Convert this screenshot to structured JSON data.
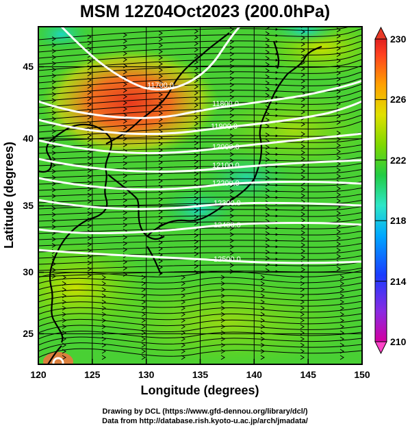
{
  "title": "MSM 12Z04Oct2023 (200.0hPa)",
  "credits": {
    "line1": "Drawing by DCL (https://www.gfd-dennou.org/library/dcl/)",
    "line2": "Data from http://database.rish.kyoto-u.ac.jp/arch/jmadata/"
  },
  "map": {
    "xlabel": "Longitude (degrees)",
    "ylabel": "Latitude  (degrees)",
    "lon_range": [
      120,
      150
    ],
    "lat_range": [
      22.4,
      47.6
    ],
    "lon_ticks": [
      "120",
      "125",
      "130",
      "135",
      "140",
      "145",
      "150"
    ],
    "lat_ticks": [
      "25",
      "30",
      "35",
      "40",
      "45"
    ],
    "shading": "temperature",
    "contours": [
      {
        "label": "11700.0",
        "color": "#ffffff"
      },
      {
        "label": "11800.0",
        "color": "#ffffff"
      },
      {
        "label": "11900.0",
        "color": "#ffffff"
      },
      {
        "label": "12000.0",
        "color": "#ffffff"
      },
      {
        "label": "12100.0",
        "color": "#ffffff"
      },
      {
        "label": "12200.0",
        "color": "#ffffff"
      },
      {
        "label": "12300.0",
        "color": "#ffffff"
      },
      {
        "label": "12400.0",
        "color": "#ffffff"
      },
      {
        "label": "12500.0",
        "color": "#ffffff"
      }
    ],
    "vectors": "streamlines (wind)",
    "coastline_color": "#000000"
  },
  "colorbar": {
    "ticks": [
      "230",
      "226",
      "222",
      "218",
      "214",
      "210"
    ],
    "range": [
      210,
      230
    ],
    "colors": [
      "#d4008e",
      "#8a2be2",
      "#1a3cff",
      "#00b4ff",
      "#2ee6c8",
      "#22cc44",
      "#9be000",
      "#f0e000",
      "#ff9900",
      "#ff4a20",
      "#e02020"
    ]
  }
}
